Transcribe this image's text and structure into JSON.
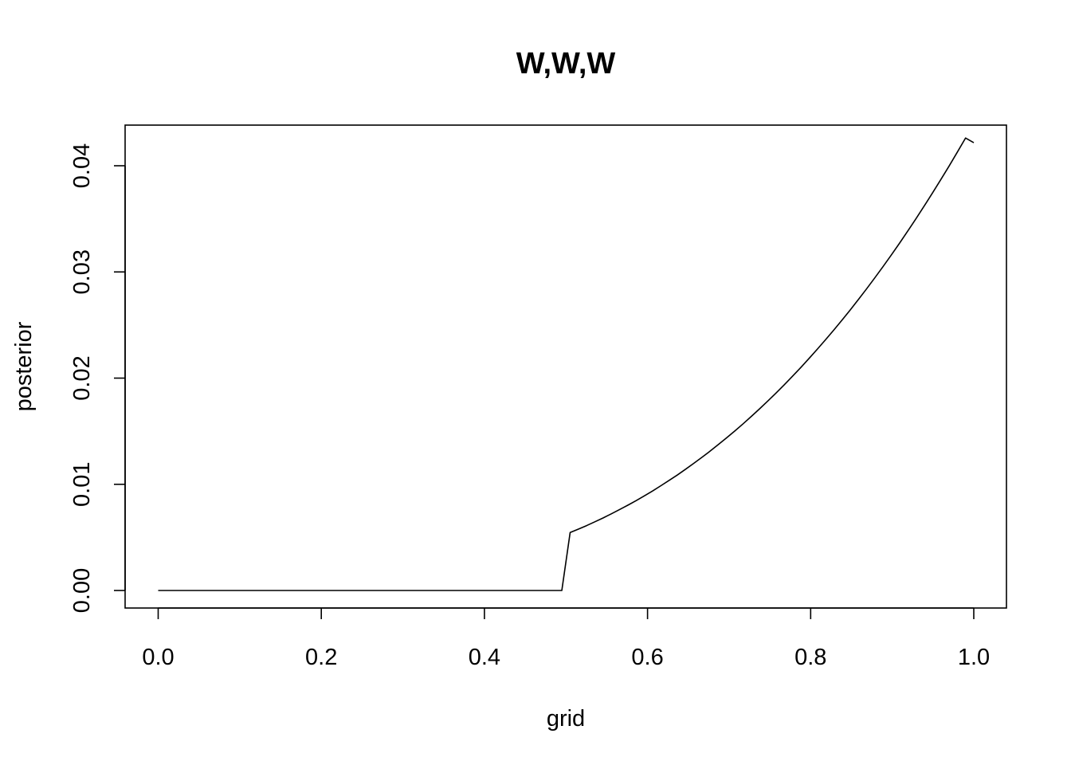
{
  "chart_data": {
    "type": "line",
    "title": "W,W,W",
    "xlabel": "grid",
    "ylabel": "posterior",
    "xlim": [
      0.0,
      1.0
    ],
    "ylim": [
      0.0,
      0.042
    ],
    "xticks": [
      "0.0",
      "0.2",
      "0.4",
      "0.6",
      "0.8",
      "1.0"
    ],
    "yticks": [
      "0.00",
      "0.01",
      "0.02",
      "0.03",
      "0.04"
    ],
    "grid": false,
    "legend": "none",
    "line_color": "#000000",
    "series": [
      {
        "x": [
          0.0,
          0.0101,
          0.0202,
          0.0303,
          0.0404,
          0.0505,
          0.0606,
          0.0707,
          0.0808,
          0.0909,
          0.101,
          0.1111,
          0.1212,
          0.1313,
          0.1414,
          0.1515,
          0.1616,
          0.1717,
          0.1818,
          0.1919,
          0.202,
          0.2121,
          0.2222,
          0.2323,
          0.2424,
          0.2525,
          0.2626,
          0.2727,
          0.2828,
          0.2929,
          0.303,
          0.3131,
          0.3232,
          0.3333,
          0.3434,
          0.3535,
          0.3636,
          0.3737,
          0.3838,
          0.3939,
          0.404,
          0.4141,
          0.4242,
          0.4343,
          0.4444,
          0.4545,
          0.4646,
          0.4747,
          0.4848,
          0.4949,
          0.5051,
          0.5152,
          0.5253,
          0.5354,
          0.5455,
          0.5556,
          0.5657,
          0.5758,
          0.5859,
          0.596,
          0.6061,
          0.6162,
          0.6263,
          0.6364,
          0.6465,
          0.6566,
          0.6667,
          0.6768,
          0.6869,
          0.697,
          0.7071,
          0.7172,
          0.7273,
          0.7374,
          0.7475,
          0.7576,
          0.7677,
          0.7778,
          0.7879,
          0.798,
          0.8081,
          0.8182,
          0.8283,
          0.8384,
          0.8485,
          0.8586,
          0.8687,
          0.8788,
          0.8889,
          0.899,
          0.9091,
          0.9192,
          0.9293,
          0.9394,
          0.9495,
          0.9596,
          0.9697,
          0.9798,
          0.9899,
          1.0
        ],
        "y": [
          0.0,
          0.0,
          0.0,
          0.0,
          0.0,
          0.0,
          0.0,
          0.0,
          0.0,
          0.0,
          0.0,
          0.0,
          0.0,
          0.0,
          0.0,
          0.0,
          0.0,
          0.0,
          0.0,
          0.0,
          0.0,
          0.0,
          0.0,
          0.0,
          0.0,
          0.0,
          0.0,
          0.0,
          0.0,
          0.0,
          0.0,
          0.0,
          0.0,
          0.0,
          0.0,
          0.0,
          0.0,
          0.0,
          0.0,
          0.0,
          0.0,
          0.0,
          0.0,
          0.0,
          0.0,
          0.0,
          0.0,
          0.0,
          0.0,
          0.0,
          0.00546,
          0.00578,
          0.00611,
          0.00647,
          0.00683,
          0.00722,
          0.00762,
          0.00803,
          0.00846,
          0.00891,
          0.00937,
          0.00986,
          0.01036,
          0.01087,
          0.01141,
          0.01197,
          0.01254,
          0.01313,
          0.01375,
          0.01438,
          0.01503,
          0.0157,
          0.0164,
          0.01711,
          0.01785,
          0.0186,
          0.01938,
          0.02018,
          0.021,
          0.02185,
          0.02272,
          0.02361,
          0.02452,
          0.02546,
          0.02642,
          0.02741,
          0.02842,
          0.02946,
          0.03052,
          0.03161,
          0.03272,
          0.03387,
          0.03503,
          0.03623,
          0.03745,
          0.0387,
          0.03997,
          0.04128,
          0.04261,
          0.04217
        ]
      }
    ]
  }
}
